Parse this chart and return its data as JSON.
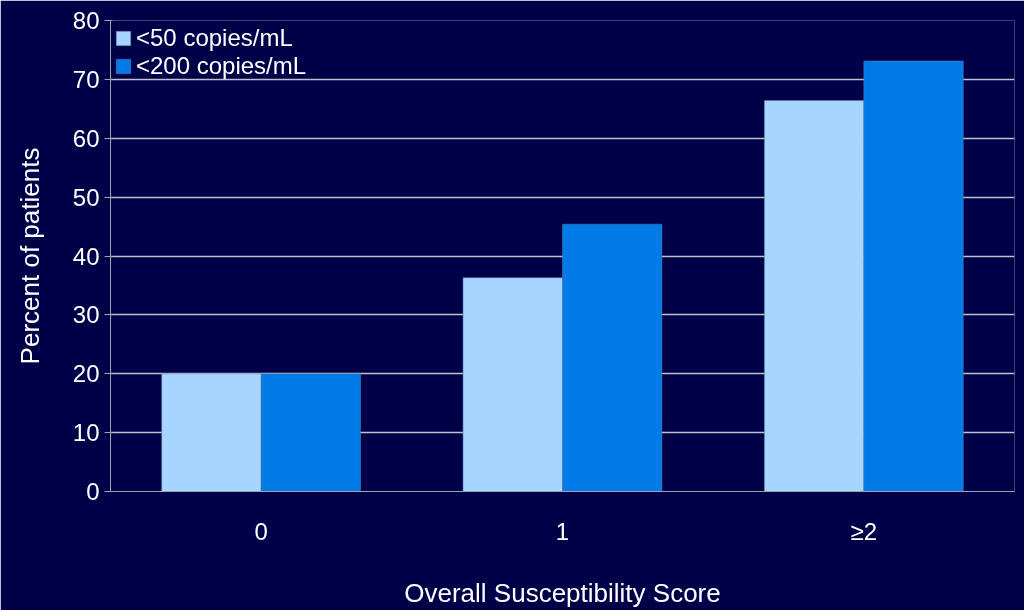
{
  "chart_data": {
    "type": "bar",
    "xlabel": "Overall Susceptibility Score",
    "ylabel": "Percent of patients",
    "categories": [
      "0",
      "1",
      "≥2"
    ],
    "series": [
      {
        "name": "<50 copies/mL",
        "color": "#a6d6ff",
        "values": [
          20,
          36.3,
          66.4
        ]
      },
      {
        "name": "<200 copies/mL",
        "color": "#007be8",
        "values": [
          20,
          45.4,
          73.1
        ]
      }
    ],
    "ylim": [
      0,
      80
    ],
    "yticks": [
      0,
      10,
      20,
      30,
      40,
      50,
      60,
      70,
      80
    ],
    "grid": "y",
    "legend": "top left"
  }
}
